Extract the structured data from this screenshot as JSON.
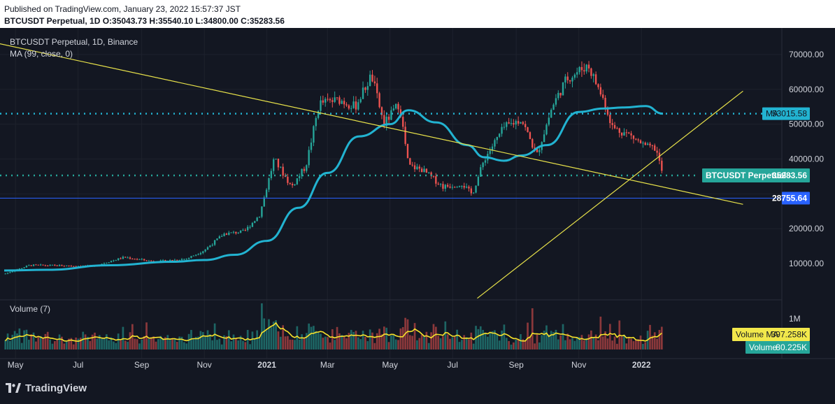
{
  "header": {
    "published": "Published on TradingView.com, January 23, 2022 15:57:37 JST",
    "symbol_line": "BTCUSDT Perpetual, 1D O:35043.73 H:35540.10 L:34800.00 C:35283.56"
  },
  "legend": {
    "symbol": "BTCUSDT Perpetual, 1D, Binance",
    "ma": "MA (99, close, 0)",
    "volume": "Volume (7)"
  },
  "price_axis": {
    "ticks": [
      "70000.00",
      "60000.00",
      "50000.00",
      "40000.00",
      "20000.00",
      "10000.00"
    ]
  },
  "volume_axis": {
    "ticks": [
      "1M"
    ]
  },
  "time_axis": {
    "ticks": [
      {
        "label": "May",
        "bold": false
      },
      {
        "label": "Jul",
        "bold": false
      },
      {
        "label": "Sep",
        "bold": false
      },
      {
        "label": "Nov",
        "bold": false
      },
      {
        "label": "2021",
        "bold": true
      },
      {
        "label": "Mar",
        "bold": false
      },
      {
        "label": "May",
        "bold": false
      },
      {
        "label": "Jul",
        "bold": false
      },
      {
        "label": "Sep",
        "bold": false
      },
      {
        "label": "Nov",
        "bold": false
      },
      {
        "label": "2022",
        "bold": true
      }
    ]
  },
  "tags": {
    "ma": {
      "name": "MA",
      "value": "53015.58",
      "color": "#22b3d1"
    },
    "last": {
      "name": "BTCUSDT Perpetual",
      "value": "35283.56",
      "color": "#26a69a"
    },
    "level": {
      "value": "28755.64",
      "color": "#2962ff"
    },
    "volume_ma": {
      "name": "Volume MA",
      "value": "397.258K",
      "color": "#f2e84b"
    },
    "volume": {
      "name": "Volume",
      "value": "80.225K",
      "color": "#26a69a"
    }
  },
  "colors": {
    "up": "#26a69a",
    "down": "#ef5350",
    "ma": "#22b3d1",
    "trendline": "#e8e24a",
    "volume_ma": "#f7e22b",
    "level": "#2962ff"
  },
  "branding": {
    "logo_text": "TradingView"
  },
  "chart_data": {
    "type": "line",
    "symbol": "BTCUSDT Perpetual",
    "interval": "1D",
    "ohlc_last": {
      "open": 35043.73,
      "high": 35540.1,
      "low": 34800.0,
      "close": 35283.56
    },
    "price_levels": {
      "ma_99": 53015.58,
      "horizontal_dotted_1": 53015.58,
      "horizontal_dotted_2": 35283.56,
      "horizontal_solid": 28755.64
    },
    "price_series": {
      "x": [
        "2020-04-20",
        "2020-05-15",
        "2020-06-15",
        "2020-07-15",
        "2020-08-15",
        "2020-09-15",
        "2020-10-15",
        "2020-11-01",
        "2020-11-20",
        "2020-12-10",
        "2020-12-25",
        "2021-01-08",
        "2021-01-25",
        "2021-02-08",
        "2021-02-21",
        "2021-03-13",
        "2021-03-28",
        "2021-04-13",
        "2021-04-25",
        "2021-05-10",
        "2021-05-19",
        "2021-06-01",
        "2021-06-22",
        "2021-07-10",
        "2021-07-20",
        "2021-08-01",
        "2021-08-20",
        "2021-09-06",
        "2021-09-21",
        "2021-10-06",
        "2021-10-20",
        "2021-11-10",
        "2021-11-25",
        "2021-12-04",
        "2021-12-20",
        "2022-01-05",
        "2022-01-15",
        "2022-01-22"
      ],
      "close": [
        7000,
        9500,
        9400,
        9200,
        11800,
        10500,
        11400,
        13800,
        18500,
        19200,
        24000,
        40000,
        32000,
        38000,
        56000,
        57000,
        55000,
        64000,
        50000,
        56000,
        38000,
        37000,
        32000,
        33000,
        29800,
        40000,
        49000,
        51500,
        41000,
        55000,
        63000,
        67000,
        57000,
        49000,
        47000,
        43500,
        43000,
        35283
      ]
    },
    "ma_series": {
      "x": [
        "2020-04-20",
        "2020-06-01",
        "2020-08-01",
        "2020-10-01",
        "2020-11-01",
        "2020-12-01",
        "2021-01-01",
        "2021-02-01",
        "2021-03-01",
        "2021-04-01",
        "2021-05-01",
        "2021-05-19",
        "2021-06-15",
        "2021-07-15",
        "2021-08-01",
        "2021-08-20",
        "2021-09-06",
        "2021-10-01",
        "2021-11-01",
        "2021-11-25",
        "2021-12-15",
        "2022-01-05",
        "2022-01-22"
      ],
      "value": [
        8000,
        8200,
        9500,
        10500,
        11000,
        12500,
        16500,
        26000,
        36000,
        46500,
        50000,
        54000,
        50500,
        44000,
        40500,
        39500,
        41000,
        44000,
        53500,
        54500,
        54800,
        55200,
        53015
      ]
    },
    "trendlines": [
      {
        "from": {
          "x": "2020-03-01",
          "y": 76000
        },
        "to": {
          "x": "2022-04-10",
          "y": 27000
        }
      },
      {
        "from": {
          "x": "2021-07-25",
          "y": 0
        },
        "to": {
          "x": "2022-04-10",
          "y": 59500
        }
      }
    ],
    "volume": {
      "unit": "BTC",
      "last": 80225,
      "ma_7": 397258
    },
    "ylim": [
      0,
      76000
    ],
    "grid": true,
    "legend_position": "top-left"
  }
}
